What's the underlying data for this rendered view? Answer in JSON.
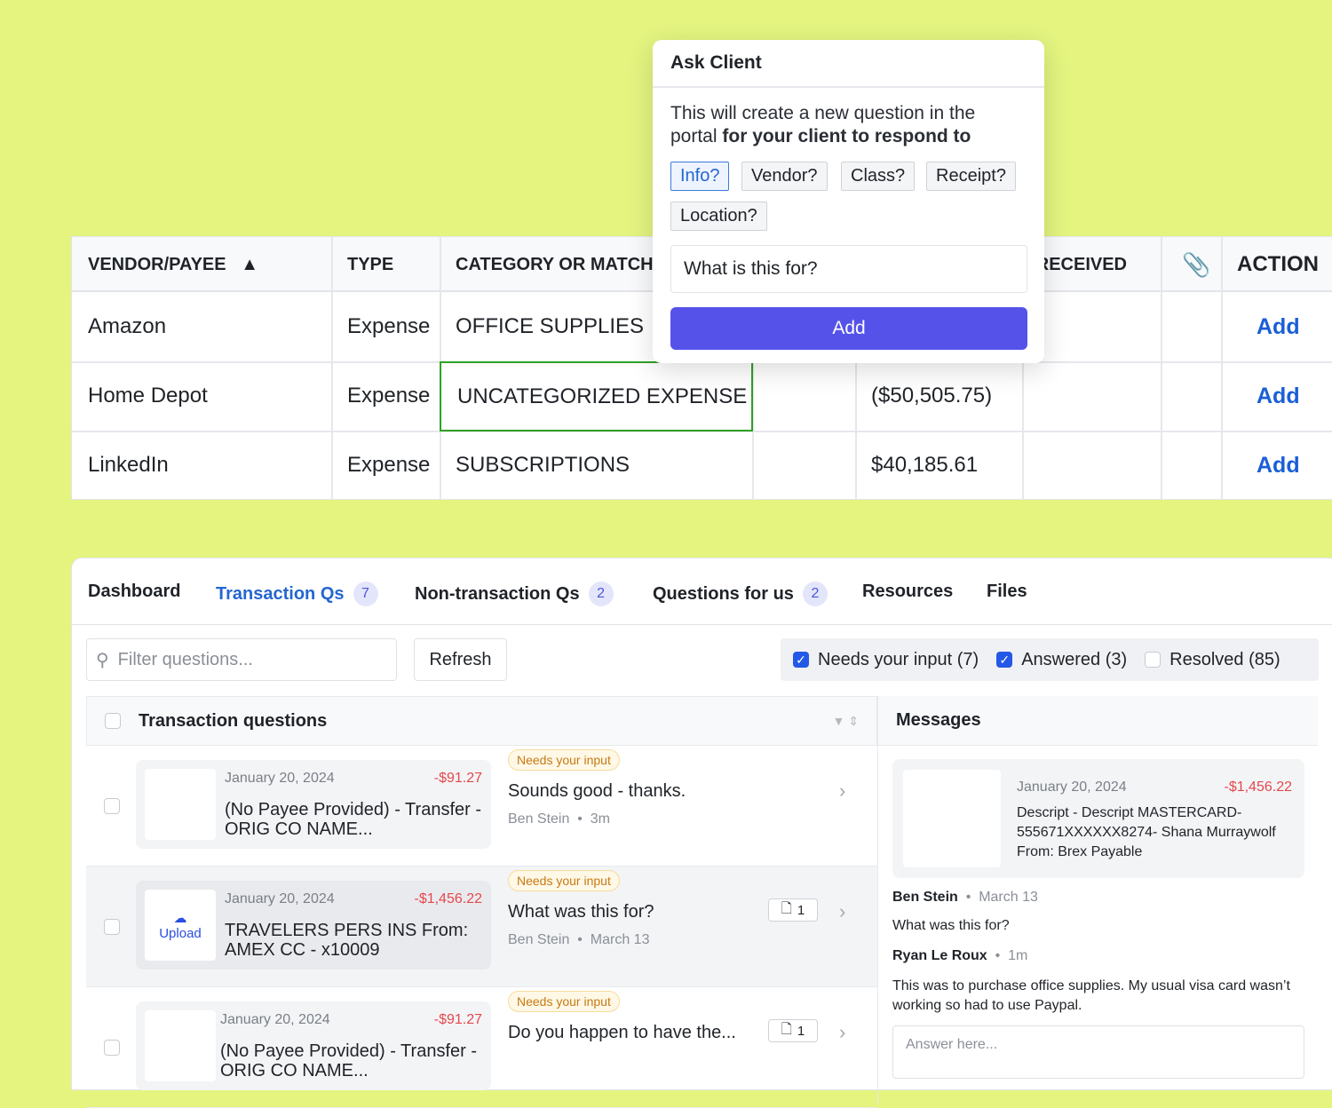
{
  "table": {
    "headers": [
      "VENDOR/PAYEE",
      "TYPE",
      "CATEGORY OR MATCH",
      "RECEIVED",
      "ACTION"
    ],
    "sort_indicator": "▲",
    "attachment_icon": "paperclip-icon",
    "rows": [
      {
        "vendor": "Amazon",
        "type": "Expense",
        "category": "OFFICE SUPPLIES",
        "amount": "",
        "action": "Add"
      },
      {
        "vendor": "Home Depot",
        "type": "Expense",
        "category": "UNCATEGORIZED EXPENSE",
        "amount": "($50,505.75)",
        "action": "Add"
      },
      {
        "vendor": "LinkedIn",
        "type": "Expense",
        "category": "SUBSCRIPTIONS",
        "amount": "$40,185.61",
        "action": "Add"
      }
    ]
  },
  "popup": {
    "title": "Ask Client",
    "desc_plain": "This will create a new question in the portal ",
    "desc_bold": "for your client to respond to",
    "chips": [
      "Info?",
      "Vendor?",
      "Class?",
      "Receipt?",
      "Location?"
    ],
    "input_value": "What is this for?",
    "add_label": "Add"
  },
  "tabs": [
    {
      "label": "Dashboard"
    },
    {
      "label": "Transaction Qs",
      "count": "7"
    },
    {
      "label": "Non-transaction Qs",
      "count": "2"
    },
    {
      "label": "Questions for us",
      "count": "2"
    },
    {
      "label": "Resources"
    },
    {
      "label": "Files"
    }
  ],
  "filter": {
    "placeholder": "Filter questions...",
    "refresh": "Refresh",
    "checks": [
      {
        "label": "Needs your input (7)",
        "checked": true
      },
      {
        "label": "Answered (3)",
        "checked": true
      },
      {
        "label": "Resolved (85)",
        "checked": false
      }
    ]
  },
  "list": {
    "title": "Transaction questions",
    "items": [
      {
        "date": "January 20, 2024",
        "amount": "-$91.27",
        "desc": "(No Payee Provided) - Transfer - ORIG CO NAME...",
        "status": "Needs your input",
        "question": "Sounds good - thanks.",
        "author": "Ben Stein",
        "time": "3m",
        "attachments": "",
        "upload": ""
      },
      {
        "date": "January 20, 2024",
        "amount": "-$1,456.22",
        "desc": "TRAVELERS PERS INS From: AMEX CC - x10009",
        "status": "Needs your input",
        "question": "What was this for?",
        "author": "Ben Stein",
        "time": "March 13",
        "attachments": "1",
        "upload": "Upload"
      },
      {
        "date": "January 20, 2024",
        "amount": "-$91.27",
        "desc": "(No Payee Provided) - Transfer - ORIG CO NAME...",
        "status": "Needs your input",
        "question": "Do you happen to have the...",
        "author": "",
        "time": "",
        "attachments": "1",
        "upload": ""
      }
    ]
  },
  "messages": {
    "title": "Messages",
    "card": {
      "date": "January 20, 2024",
      "amount": "-$1,456.22",
      "desc": "Descript - Descript MASTERCARD-555671XXXXXX8274- Shana Murraywolf From: Brex Payable"
    },
    "thread": [
      {
        "author": "Ben Stein",
        "time": "March 13",
        "text": "What was this for?"
      },
      {
        "author": "Ryan Le Roux",
        "time": "1m",
        "text": "This was to purchase office supplies. My usual visa card wasn’t working so had to use Paypal."
      }
    ],
    "answer_placeholder": "Answer here..."
  },
  "colors": {
    "background": "#e4f47f",
    "primary": "#5552ea",
    "link": "#1a5fd6",
    "negative": "#e5484d"
  }
}
